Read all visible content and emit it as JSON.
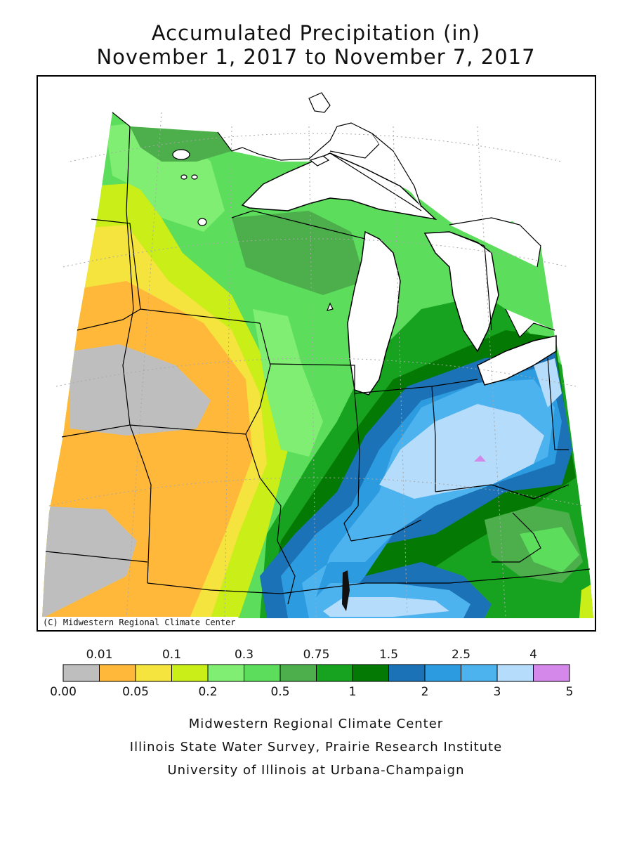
{
  "title": {
    "line1": "Accumulated Precipitation (in)",
    "line2": "November 1, 2017 to November 7, 2017"
  },
  "map": {
    "copyright": "(C) Midwestern Regional Climate Center",
    "colors": {
      "gray": "#bebebe",
      "orange": "#ffb83a",
      "yellow": "#f5e33e",
      "lime": "#c9ee18",
      "lightgreen": "#80ee72",
      "green1": "#5cdd5c",
      "green2": "#4caf4c",
      "green3": "#17a31f",
      "darkgreen": "#047a04",
      "blue1": "#1c72b6",
      "blue2": "#2c9bdf",
      "blue3": "#4db3ee",
      "lightblue": "#b5dcfa",
      "violet": "#d489ea"
    }
  },
  "legend": {
    "top_labels": [
      "0.01",
      "0.1",
      "0.3",
      "0.75",
      "1.5",
      "2.5",
      "4"
    ],
    "bottom_labels": [
      "0.00",
      "0.05",
      "0.2",
      "0.5",
      "1",
      "2",
      "3",
      "5"
    ],
    "colors": [
      "#bebebe",
      "#ffb83a",
      "#f5e33e",
      "#c9ee18",
      "#80ee72",
      "#5cdd5c",
      "#4caf4c",
      "#17a31f",
      "#047a04",
      "#1c72b6",
      "#2c9bdf",
      "#4db3ee",
      "#b5dcfa",
      "#d489ea"
    ]
  },
  "credits": {
    "line1": "Midwestern Regional Climate Center",
    "line2": "Illinois State Water Survey, Prairie Research Institute",
    "line3": "University of Illinois at Urbana-Champaign"
  }
}
